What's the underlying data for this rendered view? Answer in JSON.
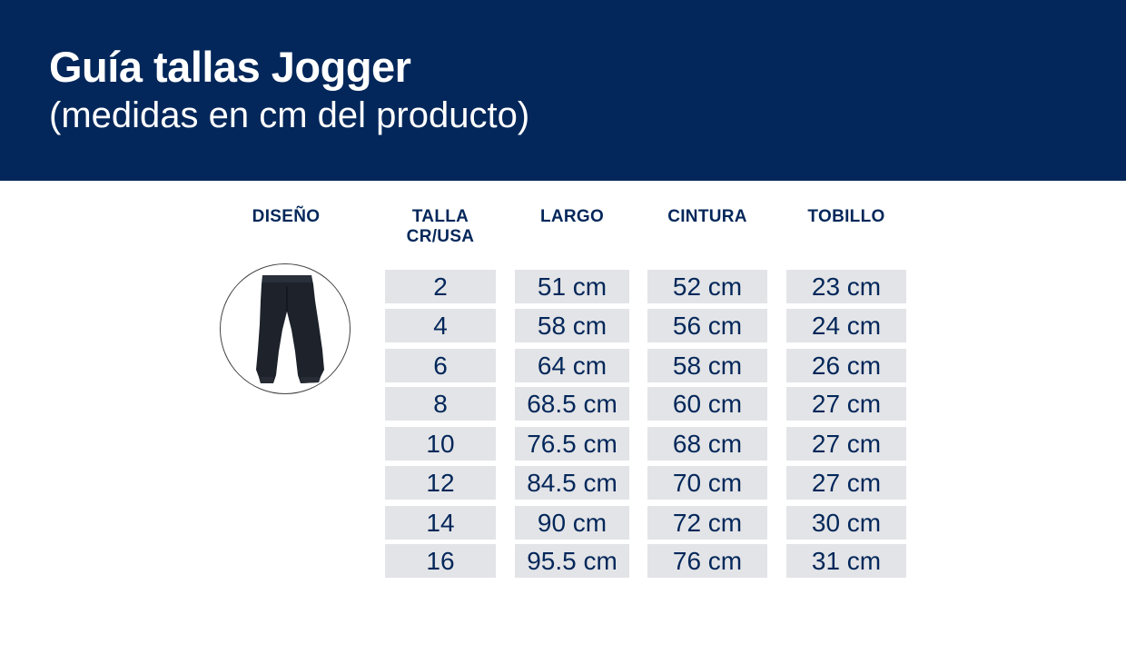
{
  "header": {
    "title": "Guía tallas Jogger",
    "subtitle": "(medidas en cm del producto)"
  },
  "columns": {
    "design": "DISEÑO",
    "size_line1": "TALLA",
    "size_line2": "CR/USA",
    "length": "LARGO",
    "waist": "CINTURA",
    "ankle": "TOBILLO"
  },
  "product_image": "pants-icon",
  "colors": {
    "header_bg": "#03275a",
    "text": "#03275a",
    "cell_bg": "#e3e4e7"
  },
  "rows": [
    {
      "size": "2",
      "length": "51 cm",
      "waist": "52 cm",
      "ankle": "23 cm"
    },
    {
      "size": "4",
      "length": "58 cm",
      "waist": "56 cm",
      "ankle": "24 cm"
    },
    {
      "size": "6",
      "length": "64 cm",
      "waist": "58 cm",
      "ankle": "26 cm"
    },
    {
      "size": "8",
      "length": "68.5 cm",
      "waist": "60 cm",
      "ankle": "27 cm"
    },
    {
      "size": "10",
      "length": "76.5 cm",
      "waist": "68 cm",
      "ankle": "27 cm"
    },
    {
      "size": "12",
      "length": "84.5 cm",
      "waist": "70 cm",
      "ankle": "27 cm"
    },
    {
      "size": "14",
      "length": "90 cm",
      "waist": "72 cm",
      "ankle": "30 cm"
    },
    {
      "size": "16",
      "length": "95.5 cm",
      "waist": "76 cm",
      "ankle": "31 cm"
    }
  ]
}
